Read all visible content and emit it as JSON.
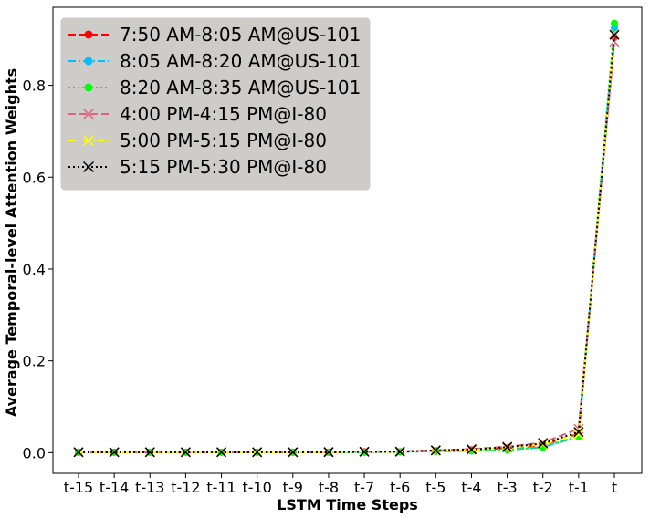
{
  "chart_data": {
    "type": "line",
    "title": "",
    "xlabel": "LSTM Time Steps",
    "ylabel": "Average Temporal-level Attention Weights",
    "categories": [
      "t-15",
      "t-14",
      "t-13",
      "t-12",
      "t-11",
      "t-10",
      "t-9",
      "t-8",
      "t-7",
      "t-6",
      "t-5",
      "t-4",
      "t-3",
      "t-2",
      "t-1",
      "t"
    ],
    "ylim": [
      -0.045,
      0.97
    ],
    "yticks": [
      "0.0",
      "0.2",
      "0.4",
      "0.6",
      "0.8"
    ],
    "ytick_values": [
      0.0,
      0.2,
      0.4,
      0.6,
      0.8
    ],
    "grid": false,
    "legend_position": "upper-left",
    "series": [
      {
        "name": "7:50 AM-8:05 AM@US-101",
        "color": "#ff0000",
        "dash": "dashed",
        "marker": "dot",
        "values": [
          0.001,
          0.001,
          0.001,
          0.001,
          0.001,
          0.001,
          0.001,
          0.001,
          0.002,
          0.002,
          0.004,
          0.006,
          0.01,
          0.016,
          0.042,
          0.905
        ]
      },
      {
        "name": "8:05 AM-8:20 AM@US-101",
        "color": "#00bfff",
        "dash": "dashdot",
        "marker": "dot",
        "values": [
          0.001,
          0.001,
          0.001,
          0.001,
          0.001,
          0.001,
          0.001,
          0.001,
          0.001,
          0.002,
          0.003,
          0.004,
          0.006,
          0.012,
          0.035,
          0.925
        ]
      },
      {
        "name": "8:20 AM-8:35 AM@US-101",
        "color": "#00ff00",
        "dash": "dotted",
        "marker": "dot",
        "values": [
          0.001,
          0.001,
          0.001,
          0.001,
          0.001,
          0.001,
          0.001,
          0.001,
          0.001,
          0.002,
          0.003,
          0.004,
          0.006,
          0.012,
          0.036,
          0.935
        ]
      },
      {
        "name": "4:00 PM-4:15 PM@I-80",
        "color": "#e0607e",
        "dash": "dashed",
        "marker": "x",
        "values": [
          0.001,
          0.001,
          0.001,
          0.001,
          0.001,
          0.001,
          0.001,
          0.002,
          0.002,
          0.003,
          0.005,
          0.008,
          0.013,
          0.022,
          0.052,
          0.895
        ]
      },
      {
        "name": "5:00 PM-5:15 PM@I-80",
        "color": "#ffff00",
        "dash": "dashdot",
        "marker": "x",
        "values": [
          0.001,
          0.001,
          0.001,
          0.001,
          0.001,
          0.001,
          0.001,
          0.001,
          0.002,
          0.002,
          0.004,
          0.006,
          0.01,
          0.018,
          0.04,
          0.912
        ]
      },
      {
        "name": "5:15 PM-5:30 PM@I-80",
        "color": "#000000",
        "dash": "dotted",
        "marker": "x",
        "values": [
          0.001,
          0.001,
          0.001,
          0.001,
          0.001,
          0.001,
          0.001,
          0.001,
          0.002,
          0.002,
          0.005,
          0.007,
          0.012,
          0.02,
          0.045,
          0.91
        ]
      }
    ]
  }
}
